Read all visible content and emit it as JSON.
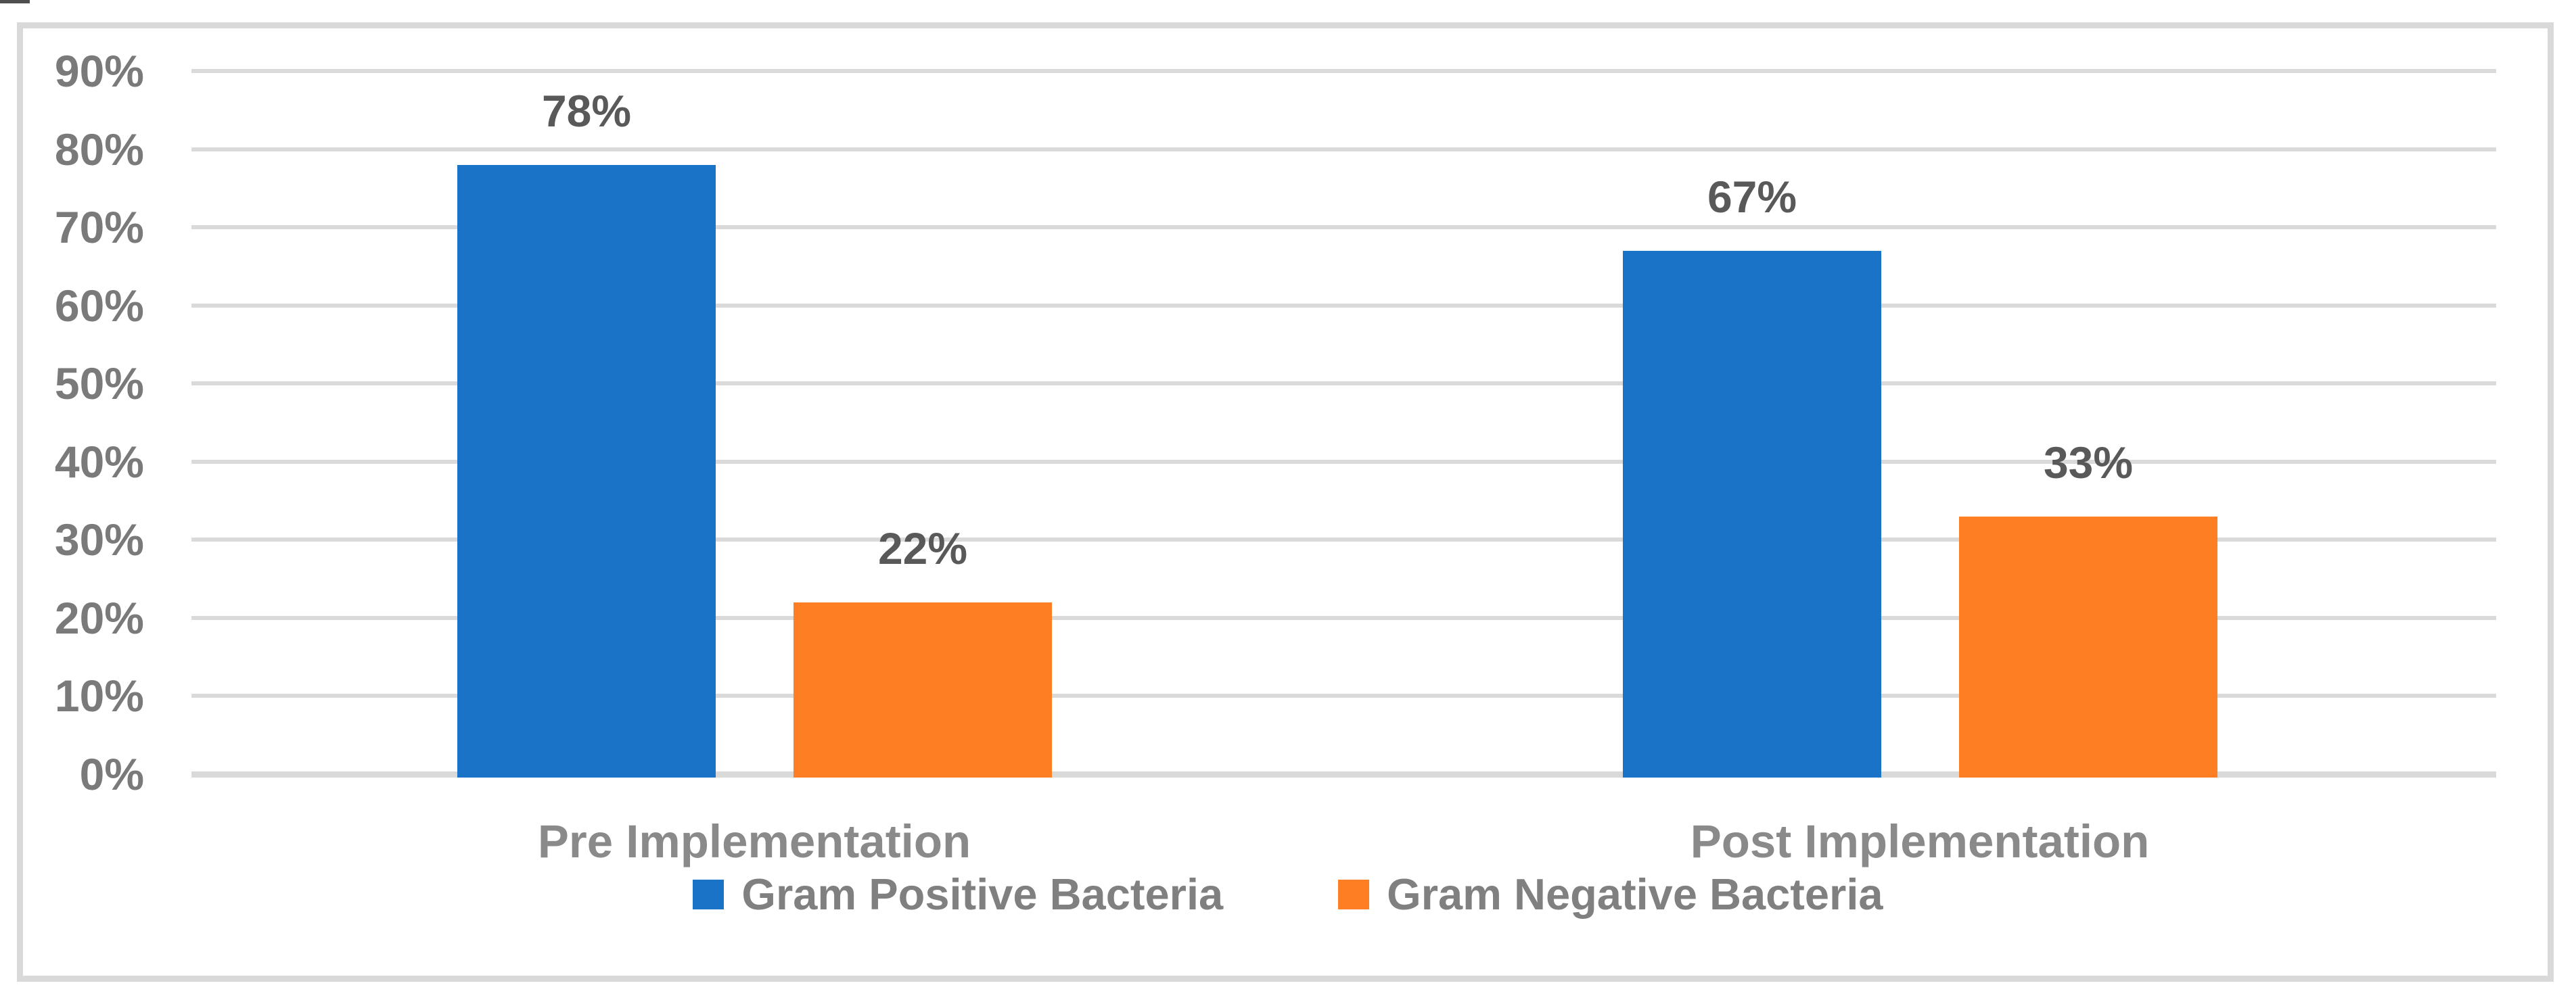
{
  "chart_data": {
    "type": "bar",
    "title": "",
    "categories": [
      "Pre Implementation",
      "Post Implementation"
    ],
    "series": [
      {
        "name": "Gram Positive Bacteria",
        "color": "#1b73c8",
        "values": [
          78,
          67
        ],
        "data_labels": [
          "78%",
          "67%"
        ]
      },
      {
        "name": "Gram Negative Bacteria",
        "color": "#fd7e23",
        "values": [
          22,
          33
        ],
        "data_labels": [
          "22%",
          "33%"
        ]
      }
    ],
    "y_axis": {
      "min": 0,
      "max": 90,
      "step": 10,
      "tick_labels": [
        "90%",
        "80%",
        "70%",
        "60%",
        "50%",
        "40%",
        "30%",
        "20%",
        "10%",
        "0%"
      ]
    },
    "grid": true,
    "gridline_color": "#d9d9d9",
    "legend_position": "bottom",
    "data_label_color": "#595959",
    "axis_text_color": "#7a7a7a",
    "category_text_color": "#8a8a8a"
  }
}
